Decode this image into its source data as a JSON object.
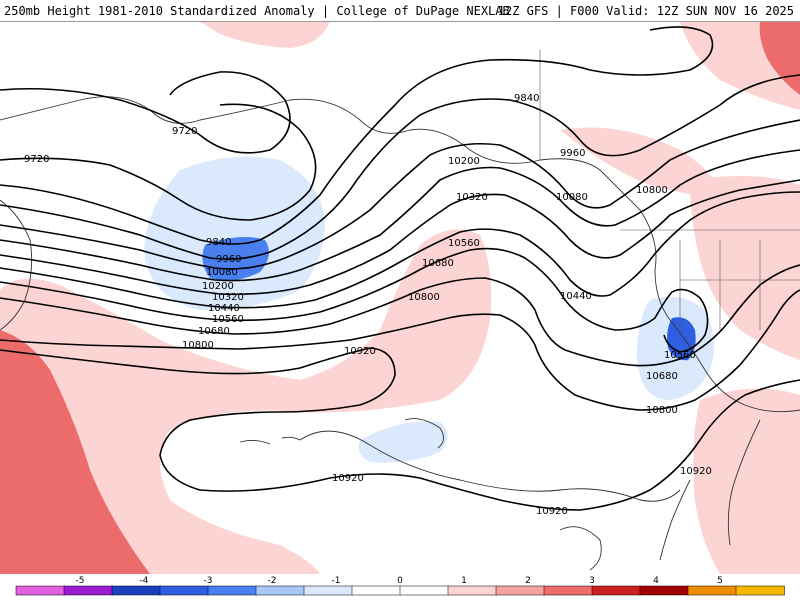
{
  "header": {
    "left_title": "250mb Height 1981-2010 Standardized Anomaly | College of DuPage NEXLAB",
    "right_title": "12Z GFS | F000 Valid: 12Z SUN NOV 16 2025"
  },
  "contour_labels": [
    "9720",
    "9720",
    "9840",
    "9840",
    "9960",
    "9960",
    "10080",
    "10080",
    "10200",
    "10200",
    "10320",
    "10320",
    "10440",
    "10440",
    "10560",
    "10560",
    "10560",
    "10680",
    "10680",
    "10680",
    "10800",
    "10800",
    "10800",
    "10800",
    "10920",
    "10920",
    "10920",
    "10920"
  ],
  "colorbar": {
    "ticks": [
      "-5",
      "-4",
      "-3",
      "-2",
      "-1",
      "0",
      "1",
      "2",
      "3",
      "4",
      "5"
    ],
    "colors": [
      "#e060e0",
      "#9a1ad0",
      "#1a3fbf",
      "#2f5fe0",
      "#4a7ff0",
      "#a8c8f8",
      "#dbe9fc",
      "#ffffff",
      "#ffffff",
      "#fcd4d4",
      "#f5a3a3",
      "#ec6b6b",
      "#cc1f1f",
      "#a00000",
      "#f08c00",
      "#f8b800"
    ]
  }
}
